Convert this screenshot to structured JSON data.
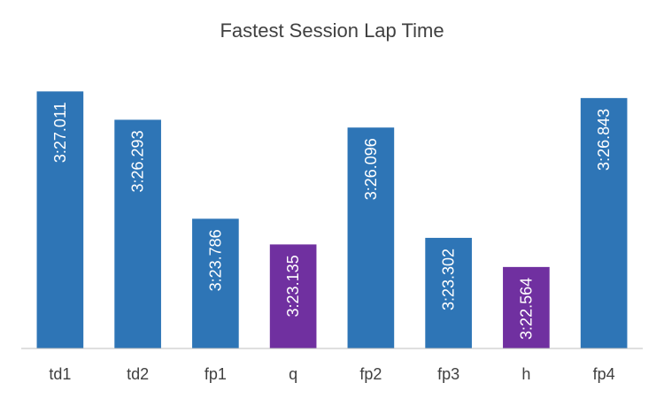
{
  "chart_data": {
    "type": "bar",
    "title": "Fastest Session Lap Time",
    "xlabel": "",
    "ylabel": "",
    "categories": [
      "td1",
      "td2",
      "fp1",
      "q",
      "fp2",
      "fp3",
      "h",
      "fp4"
    ],
    "values": [
      207.011,
      206.293,
      203.786,
      203.135,
      206.096,
      203.302,
      202.564,
      206.843
    ],
    "data_labels": [
      "3:27.011",
      "3:26.293",
      "3:23.786",
      "3:23.135",
      "3:26.096",
      "3:23.302",
      "3:22.564",
      "3:26.843"
    ],
    "ylim": [
      200.5,
      207.4
    ],
    "grid": false,
    "legend": "none",
    "colors": {
      "default": "#2E75B6",
      "highlight": "#7030A0",
      "axis": "#bfbfbf"
    },
    "highlighted": [
      "q",
      "h"
    ]
  }
}
